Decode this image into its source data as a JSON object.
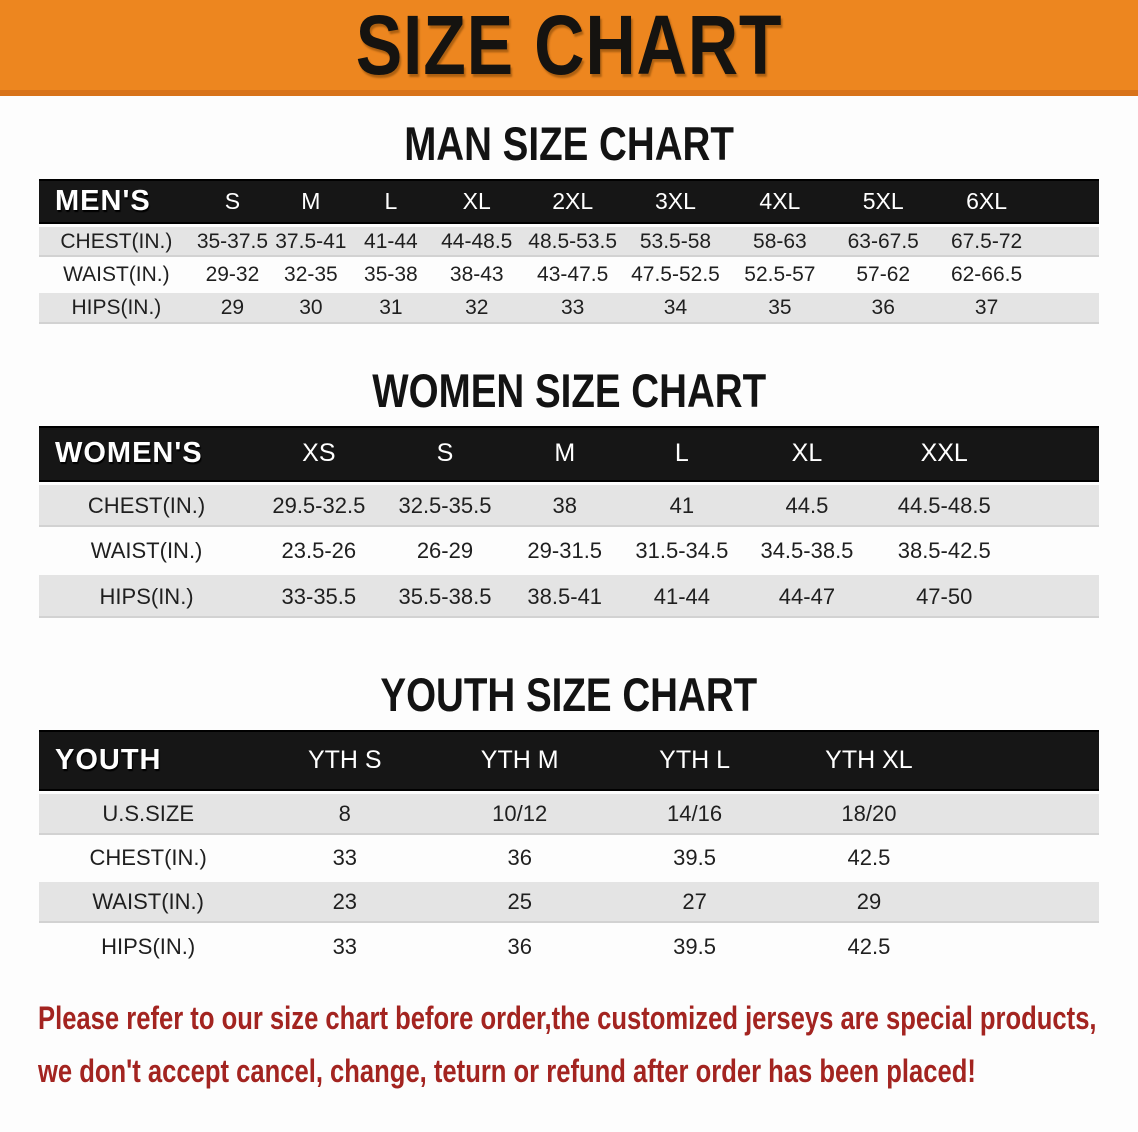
{
  "banner": {
    "title": "SIZE CHART",
    "bg_color": "#ED861F",
    "border_color": "#D8731A"
  },
  "men": {
    "heading": "MAN SIZE CHART",
    "table": {
      "header": [
        "MEN'S",
        "S",
        "M",
        "L",
        "XL",
        "2XL",
        "3XL",
        "4XL",
        "5XL",
        "6XL"
      ],
      "rows": [
        {
          "label": "CHEST(IN.)",
          "values": [
            "35-37.5",
            "37.5-41",
            "41-44",
            "44-48.5",
            "48.5-53.5",
            "53.5-58",
            "58-63",
            "63-67.5",
            "67.5-72"
          ]
        },
        {
          "label": "WAIST(IN.)",
          "values": [
            "29-32",
            "32-35",
            "35-38",
            "38-43",
            "43-47.5",
            "47.5-52.5",
            "52.5-57",
            "57-62",
            "62-66.5"
          ]
        },
        {
          "label": "HIPS(IN.)",
          "values": [
            "29",
            "30",
            "31",
            "32",
            "33",
            "34",
            "35",
            "36",
            "37"
          ]
        }
      ]
    }
  },
  "women": {
    "heading": "WOMEN SIZE CHART",
    "table": {
      "header": [
        "WOMEN'S",
        "XS",
        "S",
        "M",
        "L",
        "XL",
        "XXL"
      ],
      "rows": [
        {
          "label": "CHEST(IN.)",
          "values": [
            "29.5-32.5",
            "32.5-35.5",
            "38",
            "41",
            "44.5",
            "44.5-48.5"
          ]
        },
        {
          "label": "WAIST(IN.)",
          "values": [
            "23.5-26",
            "26-29",
            "29-31.5",
            "31.5-34.5",
            "34.5-38.5",
            "38.5-42.5"
          ]
        },
        {
          "label": "HIPS(IN.)",
          "values": [
            "33-35.5",
            "35.5-38.5",
            "38.5-41",
            "41-44",
            "44-47",
            "47-50"
          ]
        }
      ]
    }
  },
  "youth": {
    "heading": "YOUTH SIZE CHART",
    "table": {
      "header": [
        "YOUTH",
        "YTH S",
        "YTH M",
        "YTH L",
        "YTH XL"
      ],
      "rows": [
        {
          "label": "U.S.SIZE",
          "values": [
            "8",
            "10/12",
            "14/16",
            "18/20"
          ]
        },
        {
          "label": "CHEST(IN.)",
          "values": [
            "33",
            "36",
            "39.5",
            "42.5"
          ]
        },
        {
          "label": "WAIST(IN.)",
          "values": [
            "23",
            "25",
            "27",
            "29"
          ]
        },
        {
          "label": "HIPS(IN.)",
          "values": [
            "33",
            "36",
            "39.5",
            "42.5"
          ]
        }
      ]
    }
  },
  "disclaimer": {
    "color": "#A32420",
    "lines": [
      "Please refer to our size chart before order,the customized jerseys are special products,",
      "we don't accept cancel, change, teturn or refund after order has been placed!"
    ]
  }
}
